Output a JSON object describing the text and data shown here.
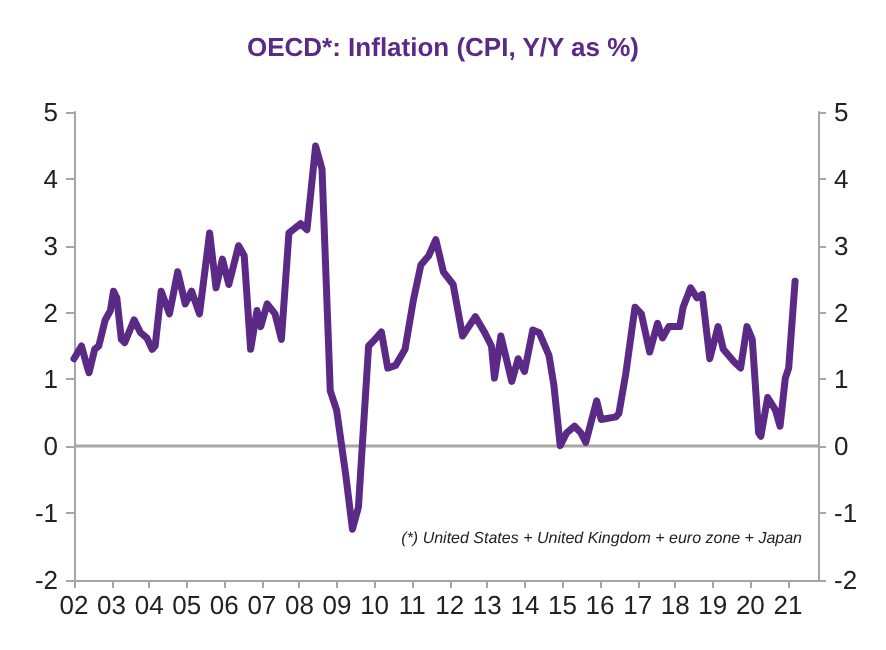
{
  "chart_data": {
    "type": "line",
    "title": "OECD*: Inflation (CPI, Y/Y as %)",
    "x": [
      2002.0,
      2002.2,
      2002.34,
      2002.4,
      2002.55,
      2002.66,
      2002.83,
      2002.97,
      2003.05,
      2003.14,
      2003.26,
      2003.35,
      2003.6,
      2003.77,
      2003.94,
      2004.08,
      2004.16,
      2004.32,
      2004.54,
      2004.76,
      2004.96,
      2005.13,
      2005.34,
      2005.61,
      2005.78,
      2005.95,
      2006.12,
      2006.38,
      2006.53,
      2006.7,
      2006.87,
      2006.97,
      2007.14,
      2007.35,
      2007.52,
      2007.72,
      2008.03,
      2008.2,
      2008.43,
      2008.6,
      2008.82,
      2008.99,
      2009.23,
      2009.41,
      2009.57,
      2009.84,
      2010.01,
      2010.18,
      2010.35,
      2010.56,
      2010.81,
      2011.03,
      2011.23,
      2011.44,
      2011.63,
      2011.83,
      2012.09,
      2012.34,
      2012.68,
      2012.93,
      2013.11,
      2013.19,
      2013.36,
      2013.65,
      2013.82,
      2013.99,
      2014.21,
      2014.38,
      2014.64,
      2014.77,
      2014.94,
      2015.11,
      2015.32,
      2015.49,
      2015.62,
      2015.91,
      2016.03,
      2016.42,
      2016.5,
      2016.68,
      2016.93,
      2017.1,
      2017.32,
      2017.53,
      2017.66,
      2017.83,
      2018.12,
      2018.21,
      2018.41,
      2018.58,
      2018.72,
      2018.92,
      2019.14,
      2019.28,
      2019.57,
      2019.74,
      2019.91,
      2020.05,
      2020.22,
      2020.28,
      2020.46,
      2020.67,
      2020.79,
      2020.93,
      2021.02,
      2021.19
    ],
    "series": [
      {
        "color": "#5b2a86",
        "values": [
          1.31,
          1.5,
          1.21,
          1.1,
          1.45,
          1.5,
          1.89,
          2.03,
          2.32,
          2.22,
          1.6,
          1.55,
          1.89,
          1.7,
          1.62,
          1.45,
          1.5,
          2.32,
          1.98,
          2.61,
          2.13,
          2.32,
          1.98,
          3.19,
          2.37,
          2.8,
          2.42,
          3.0,
          2.85,
          1.45,
          2.03,
          1.79,
          2.13,
          1.98,
          1.6,
          3.19,
          3.33,
          3.24,
          4.49,
          4.15,
          0.83,
          0.54,
          -0.42,
          -1.24,
          -0.91,
          1.5,
          1.6,
          1.71,
          1.17,
          1.21,
          1.45,
          2.18,
          2.71,
          2.85,
          3.09,
          2.61,
          2.42,
          1.65,
          1.94,
          1.7,
          1.5,
          1.02,
          1.65,
          0.97,
          1.31,
          1.12,
          1.74,
          1.7,
          1.36,
          0.92,
          0.01,
          0.2,
          0.3,
          0.2,
          0.06,
          0.68,
          0.4,
          0.44,
          0.49,
          1.07,
          2.08,
          1.98,
          1.41,
          1.84,
          1.62,
          1.79,
          1.79,
          2.08,
          2.37,
          2.22,
          2.27,
          1.31,
          1.79,
          1.45,
          1.26,
          1.17,
          1.79,
          1.6,
          0.2,
          0.15,
          0.73,
          0.54,
          0.3,
          1.02,
          1.17,
          2.47
        ]
      }
    ],
    "xlim": [
      2002,
      2021.8
    ],
    "xticks": [
      {
        "value": 2002,
        "label": "02"
      },
      {
        "value": 2003,
        "label": "03"
      },
      {
        "value": 2004,
        "label": "04"
      },
      {
        "value": 2005,
        "label": "05"
      },
      {
        "value": 2006,
        "label": "06"
      },
      {
        "value": 2007,
        "label": "07"
      },
      {
        "value": 2008,
        "label": "08"
      },
      {
        "value": 2009,
        "label": "09"
      },
      {
        "value": 2010,
        "label": "10"
      },
      {
        "value": 2011,
        "label": "11"
      },
      {
        "value": 2012,
        "label": "12"
      },
      {
        "value": 2013,
        "label": "13"
      },
      {
        "value": 2014,
        "label": "14"
      },
      {
        "value": 2015,
        "label": "15"
      },
      {
        "value": 2016,
        "label": "16"
      },
      {
        "value": 2017,
        "label": "17"
      },
      {
        "value": 2018,
        "label": "18"
      },
      {
        "value": 2019,
        "label": "19"
      },
      {
        "value": 2020,
        "label": "20"
      },
      {
        "value": 2021,
        "label": "21"
      }
    ],
    "ylim": [
      -2,
      5
    ],
    "yticks": [
      -2,
      -1,
      0,
      1,
      2,
      3,
      4,
      5
    ],
    "y2lim": [
      -2,
      5
    ],
    "y2ticks": [
      -2,
      -1,
      0,
      1,
      2,
      3,
      4,
      5
    ],
    "ref_lines": [
      {
        "axis": "y",
        "value": 0,
        "color": "#a6a6a6"
      }
    ],
    "annotations": [
      "(*) United States + United Kingdom + euro zone + Japan"
    ],
    "grid": false,
    "marker": "none",
    "line_style": "solid"
  }
}
